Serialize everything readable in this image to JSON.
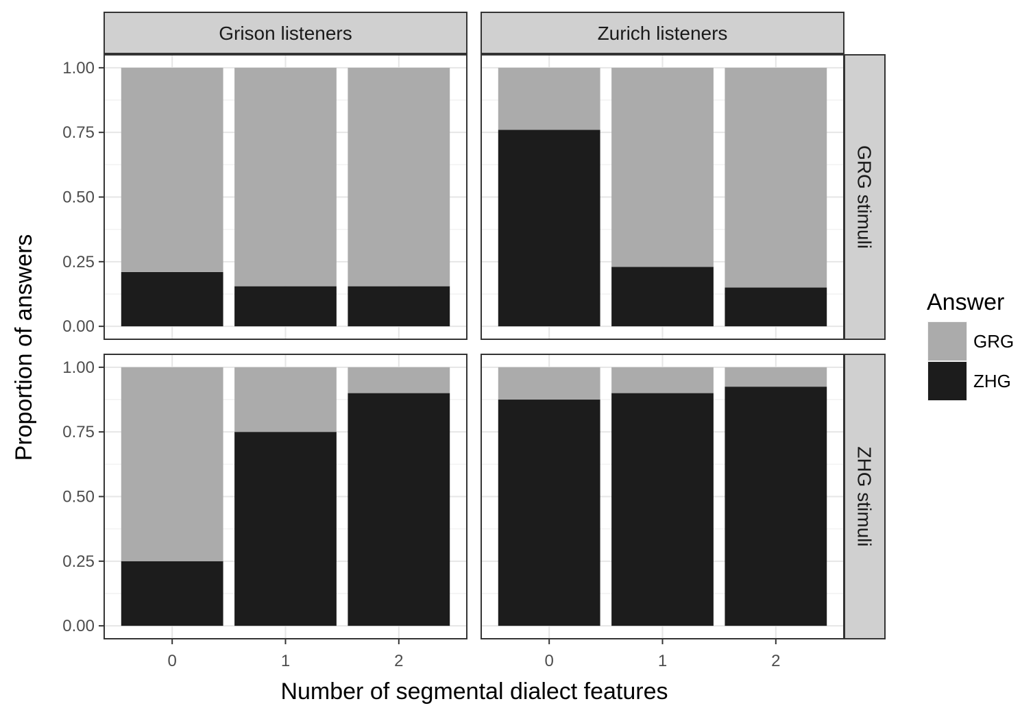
{
  "chart_data": {
    "type": "bar",
    "stacked": true,
    "facet_columns": [
      "Grison listeners",
      "Zurich listeners"
    ],
    "facet_rows": [
      "GRG stimuli",
      "ZHG stimuli"
    ],
    "categories": [
      "0",
      "1",
      "2"
    ],
    "xlabel": "Number of segmental dialect features",
    "ylabel": "Proportion of answers",
    "ylim": [
      0,
      1
    ],
    "yticks": [
      "0.00",
      "0.25",
      "0.50",
      "0.75",
      "1.00"
    ],
    "grid": true,
    "legend": {
      "title": "Answer",
      "placement": "right",
      "entries": [
        {
          "name": "GRG",
          "color": "#ababab"
        },
        {
          "name": "ZHG",
          "color": "#1c1c1c"
        }
      ]
    },
    "panels": [
      {
        "column": "Grison listeners",
        "row": "GRG stimuli",
        "series": [
          {
            "name": "ZHG",
            "values": [
              0.21,
              0.155,
              0.155
            ]
          },
          {
            "name": "GRG",
            "values": [
              0.79,
              0.845,
              0.845
            ]
          }
        ]
      },
      {
        "column": "Zurich listeners",
        "row": "GRG stimuli",
        "series": [
          {
            "name": "ZHG",
            "values": [
              0.76,
              0.23,
              0.15
            ]
          },
          {
            "name": "GRG",
            "values": [
              0.24,
              0.77,
              0.85
            ]
          }
        ]
      },
      {
        "column": "Grison listeners",
        "row": "ZHG stimuli",
        "series": [
          {
            "name": "ZHG",
            "values": [
              0.25,
              0.75,
              0.9
            ]
          },
          {
            "name": "GRG",
            "values": [
              0.75,
              0.25,
              0.1
            ]
          }
        ]
      },
      {
        "column": "Zurich listeners",
        "row": "ZHG stimuli",
        "series": [
          {
            "name": "ZHG",
            "values": [
              0.875,
              0.9,
              0.925
            ]
          },
          {
            "name": "GRG",
            "values": [
              0.125,
              0.1,
              0.075
            ]
          }
        ]
      }
    ]
  }
}
